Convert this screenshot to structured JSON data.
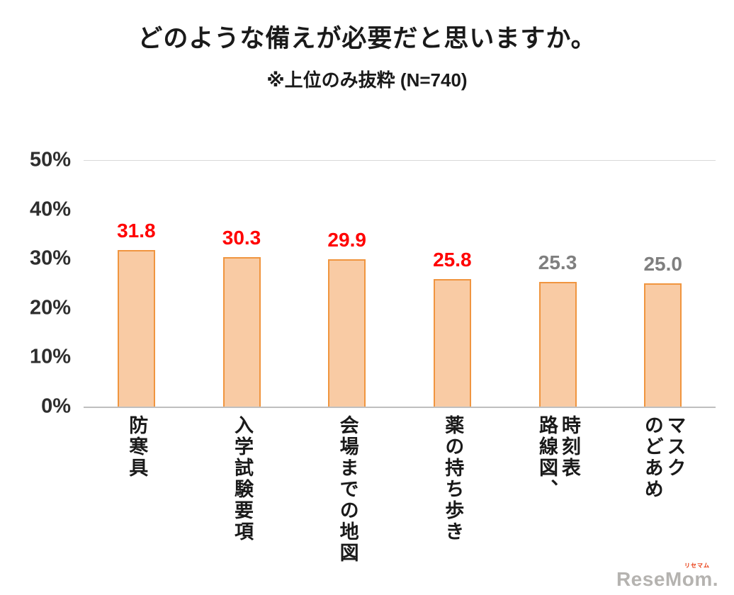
{
  "chart_data": {
    "type": "bar",
    "title": "どのような備えが必要だと思いますか。",
    "subtitle": "※上位のみ抜粋 (N=740)",
    "categories": [
      "防寒具",
      "入学試験要項",
      "会場までの地図",
      "薬の持ち歩き",
      "路線図、時刻表",
      "マスク のどあめ"
    ],
    "category_lines": [
      [
        "防寒具"
      ],
      [
        "入学試験要項"
      ],
      [
        "会場までの地図"
      ],
      [
        "薬の持ち歩き"
      ],
      [
        "路線図、",
        "時刻表"
      ],
      [
        "のどあめ",
        "マスク"
      ]
    ],
    "values": [
      31.8,
      30.3,
      29.9,
      25.8,
      25.3,
      25.0
    ],
    "value_labels": [
      "31.8",
      "30.3",
      "29.9",
      "25.8",
      "25.3",
      "25.0"
    ],
    "value_label_colors": [
      "#ff0000",
      "#ff0000",
      "#ff0000",
      "#ff0000",
      "#7f7f7f",
      "#7f7f7f"
    ],
    "xlabel": "",
    "ylabel": "",
    "ylim": [
      0,
      50
    ],
    "yticks": [
      {
        "label": "50%",
        "value": 50
      },
      {
        "label": "40%",
        "value": 40
      },
      {
        "label": "30%",
        "value": 30
      },
      {
        "label": "20%",
        "value": 20
      },
      {
        "label": "10%",
        "value": 10
      },
      {
        "label": "0%",
        "value": 0
      }
    ],
    "grid": "top-line-and-baseline-only",
    "legend": "none",
    "bar_fill": "#f9cba4",
    "bar_border": "#f0953f"
  },
  "watermark": {
    "name": "ReseMom.",
    "ruby": "リセマム"
  }
}
